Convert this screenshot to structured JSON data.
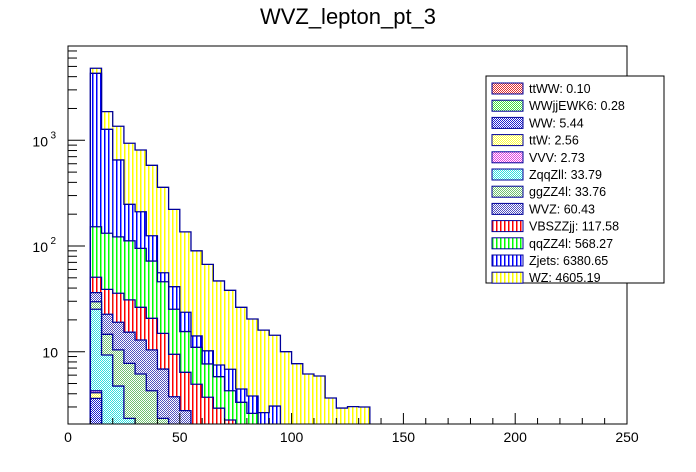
{
  "chart_data": {
    "type": "bar",
    "subtype": "stacked-histogram",
    "title": "WVZ_lepton_pt_3",
    "xlabel": "",
    "ylabel": "",
    "xlim": [
      0,
      250
    ],
    "ylim": [
      2.07,
      7800
    ],
    "yscale": "log",
    "bin_width": 5,
    "x_ticks": [
      "0",
      "50",
      "100",
      "150",
      "200",
      "250"
    ],
    "x_tick_values": [
      0,
      50,
      100,
      150,
      200,
      250
    ],
    "y_ticks": [
      {
        "value": 10,
        "base": "10",
        "exp": ""
      },
      {
        "value": 100,
        "base": "10",
        "exp": "2"
      },
      {
        "value": 1000,
        "base": "10",
        "exp": "3"
      }
    ],
    "legend_position": "top-right",
    "value_meaning": "cumulative stack height at top of each process (drawn back to front: top of stack first)",
    "bin_lows": [
      10,
      15,
      20,
      25,
      30,
      35,
      40,
      45,
      50,
      55,
      60,
      65,
      70,
      75,
      80,
      85,
      90,
      95,
      100,
      105,
      110,
      115,
      120,
      125,
      130
    ],
    "series": [
      {
        "name": "WZ",
        "legend": "WZ: 4605.19",
        "color": "#ffff00",
        "pattern": "vlines",
        "values": [
          4800,
          1867,
          1357,
          937,
          810,
          580,
          359,
          222,
          136,
          90,
          67,
          46.7,
          38.1,
          26.3,
          20.4,
          16.0,
          14.3,
          10.0,
          7.7,
          6.15,
          5.89,
          3.65,
          2.93,
          3.02,
          3.0
        ]
      },
      {
        "name": "Zjets",
        "legend": "Zjets: 6380.65",
        "color": "#0000ff",
        "pattern": "vlines",
        "values": [
          4300,
          1270,
          652,
          248,
          211,
          125,
          55.8,
          41.2,
          23.6,
          14.1,
          10.2,
          7.48,
          6.82,
          4.44,
          3.81,
          2.65,
          3.06,
          0,
          0,
          0,
          0,
          0,
          0,
          0,
          0
        ]
      },
      {
        "name": "qqZZ4l",
        "legend": "qqZZ4l: 568.27",
        "color": "#00ff00",
        "pattern": "vlines",
        "values": [
          152,
          132,
          122,
          112,
          95,
          72,
          45.9,
          25.2,
          15.5,
          11.0,
          7.66,
          5.8,
          4.27,
          3.32,
          2.61,
          0,
          0,
          0,
          0,
          0,
          0,
          0,
          0,
          0,
          0
        ]
      },
      {
        "name": "VBSZZjj",
        "legend": "VBSZZjj: 117.58",
        "color": "#ff0000",
        "pattern": "vlines",
        "values": [
          50.6,
          38.9,
          35.7,
          30.9,
          26.3,
          20.7,
          14.9,
          9.45,
          6.38,
          4.92,
          3.71,
          2.92,
          2.26,
          0,
          0,
          0,
          0,
          0,
          0,
          0,
          0,
          0,
          0,
          0,
          0
        ]
      },
      {
        "name": "WVZ",
        "legend": "WVZ: 60.43",
        "color": "#5050c0",
        "pattern": "checker",
        "values": [
          36.2,
          22.6,
          19.0,
          15.3,
          12.9,
          10.4,
          6.85,
          3.75,
          2.77,
          0,
          0,
          0,
          0,
          0,
          0,
          0,
          0,
          0,
          0,
          0,
          0,
          0,
          0,
          0,
          0
        ]
      },
      {
        "name": "ggZZ4l",
        "legend": "ggZZ4l: 33.76",
        "color": "#70c070",
        "pattern": "checker",
        "values": [
          29.7,
          14.6,
          10.4,
          7.76,
          6.15,
          4.27,
          2.34,
          0,
          0,
          0,
          0,
          0,
          0,
          0,
          0,
          0,
          0,
          0,
          0,
          0,
          0,
          0,
          0,
          0,
          0
        ]
      },
      {
        "name": "ZqqZll",
        "legend": "ZqqZll: 33.79",
        "color": "#30e0e0",
        "pattern": "checker",
        "values": [
          25.2,
          9.31,
          4.73,
          2.34,
          0,
          0,
          0,
          0,
          0,
          0,
          0,
          0,
          0,
          0,
          0,
          0,
          0,
          0,
          0,
          0,
          0,
          0,
          0,
          0,
          0
        ]
      },
      {
        "name": "VVV",
        "legend": "VVV: 2.73",
        "color": "#e040e0",
        "pattern": "checker",
        "values": [
          4.27,
          0,
          0,
          0,
          0,
          0,
          0,
          0,
          0,
          0,
          0,
          0,
          0,
          0,
          0,
          0,
          0,
          0,
          0,
          0,
          0,
          0,
          0,
          0,
          0
        ]
      },
      {
        "name": "ttW",
        "legend": "ttW: 2.56",
        "color": "#ffff40",
        "pattern": "checker",
        "values": [
          4.09,
          0,
          0,
          0,
          0,
          0,
          0,
          0,
          0,
          0,
          0,
          0,
          0,
          0,
          0,
          0,
          0,
          0,
          0,
          0,
          0,
          0,
          0,
          0,
          0
        ]
      },
      {
        "name": "WW",
        "legend": "WW: 5.44",
        "color": "#2020d0",
        "pattern": "checker",
        "values": [
          3.62,
          0,
          0,
          0,
          0,
          0,
          0,
          0,
          0,
          0,
          0,
          0,
          0,
          0,
          0,
          0,
          0,
          0,
          0,
          0,
          0,
          0,
          0,
          0,
          0
        ]
      },
      {
        "name": "WWjjEWK6",
        "legend": "WWjjEWK6: 0.28",
        "color": "#40e040",
        "pattern": "checker",
        "values": [
          0,
          0,
          0,
          0,
          0,
          0,
          0,
          0,
          0,
          0,
          0,
          0,
          0,
          0,
          0,
          0,
          0,
          0,
          0,
          0,
          0,
          0,
          0,
          0,
          0
        ]
      },
      {
        "name": "ttWW",
        "legend": "ttWW: 0.10",
        "color": "#e03030",
        "pattern": "checker",
        "values": [
          0,
          0,
          0,
          0,
          0,
          0,
          0,
          0,
          0,
          0,
          0,
          0,
          0,
          0,
          0,
          0,
          0,
          0,
          0,
          0,
          0,
          0,
          0,
          0,
          0
        ]
      }
    ],
    "legend_order": [
      "ttWW",
      "WWjjEWK6",
      "WW",
      "ttW",
      "VVV",
      "ZqqZll",
      "ggZZ4l",
      "WVZ",
      "VBSZZjj",
      "qqZZ4l",
      "Zjets",
      "WZ"
    ]
  }
}
